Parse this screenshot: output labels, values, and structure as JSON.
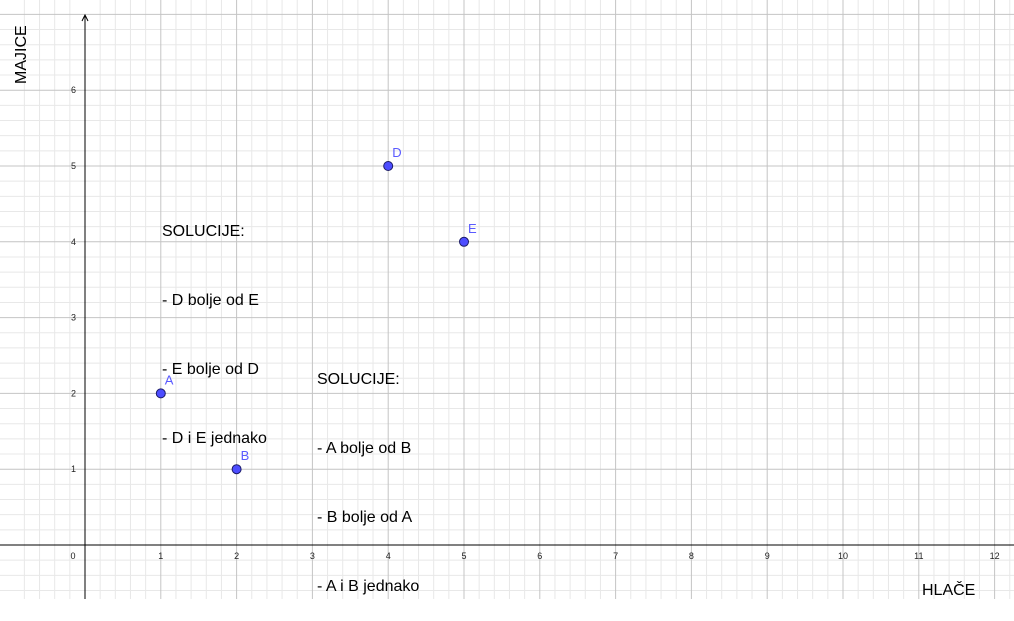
{
  "chart_data": {
    "type": "scatter",
    "xlabel": "HLAČE",
    "ylabel": "MAJICE",
    "xlim": [
      -0.9,
      12.4
    ],
    "ylim": [
      -0.75,
      7.1
    ],
    "x_ticks": [
      0,
      1,
      2,
      3,
      4,
      5,
      6,
      7,
      8,
      9,
      10,
      11,
      12
    ],
    "y_ticks": [
      1,
      2,
      3,
      4,
      5,
      6
    ],
    "grid": true,
    "minor_grid_per_unit": 5,
    "point_color": "#4d4dff",
    "label_color": "#5a5aff",
    "points": [
      {
        "label": "A",
        "x": 1,
        "y": 2
      },
      {
        "label": "B",
        "x": 2,
        "y": 1
      },
      {
        "label": "D",
        "x": 4,
        "y": 5
      },
      {
        "label": "E",
        "x": 5,
        "y": 4
      }
    ],
    "annotations": [
      {
        "lines": [
          "SOLUCIJE:",
          "- D bolje od E",
          "- E bolje od D",
          "- D i E jednako"
        ]
      },
      {
        "lines": [
          "SOLUCIJE:",
          "- A bolje od B",
          "- B bolje od A",
          "- A i B jednako"
        ]
      }
    ]
  }
}
